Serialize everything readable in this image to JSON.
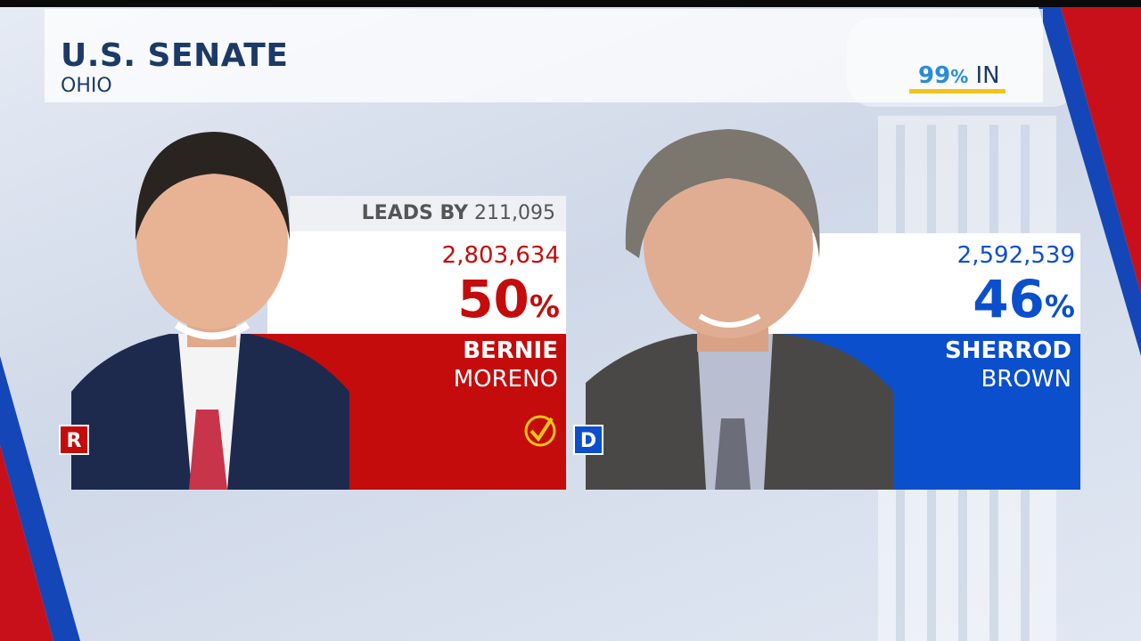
{
  "header": {
    "title": "U.S. SENATE",
    "subtitle": "OHIO"
  },
  "reporting": {
    "number": "99",
    "unit": "%",
    "label": "IN"
  },
  "candidates": [
    {
      "party": "R",
      "color": "#c40c0c",
      "first_name": "BERNIE",
      "last_name": "MORENO",
      "votes": "2,803,634",
      "percent": "50",
      "percent_unit": "%",
      "lead_label": "LEADS BY",
      "lead": "211,095",
      "winner": true
    },
    {
      "party": "D",
      "color": "#0b4fcc",
      "first_name": "SHERROD",
      "last_name": "BROWN",
      "votes": "2,592,539",
      "percent": "46",
      "percent_unit": "%",
      "winner": false
    }
  ]
}
